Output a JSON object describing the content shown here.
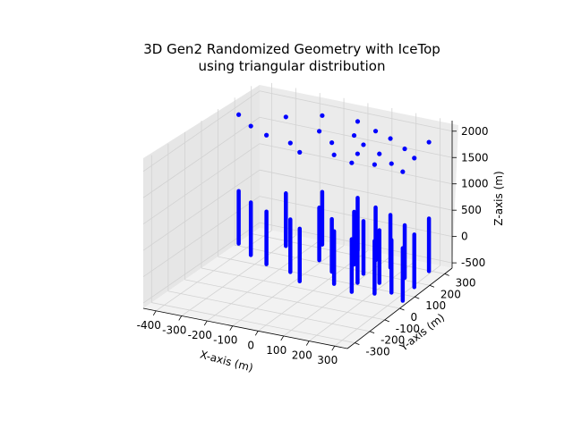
{
  "chart_data": {
    "type": "scatter3d",
    "title_line1": "3D Gen2 Randomized Geometry with IceTop",
    "title_line2": "using triangular distribution",
    "xlabel": "X-axis (m)",
    "ylabel": "Y-axis (m)",
    "zlabel": "Z-axis (m)",
    "xticks": [
      "-400",
      "-300",
      "-200",
      "-100",
      "0",
      "100",
      "200",
      "300"
    ],
    "yticks": [
      "-300",
      "-200",
      "-100",
      "0",
      "100",
      "200",
      "300"
    ],
    "zticks": [
      "-500",
      "0",
      "500",
      "1000",
      "1500",
      "2000"
    ],
    "color": "#0000ff",
    "icetop_z": 1950,
    "string_z_range": [
      -500,
      500
    ],
    "stations": [
      [
        -420,
        180
      ],
      [
        -330,
        120
      ],
      [
        -260,
        230
      ],
      [
        -240,
        80
      ],
      [
        -150,
        290
      ],
      [
        -130,
        60
      ],
      [
        -90,
        180
      ],
      [
        -60,
        10
      ],
      [
        -10,
        300
      ],
      [
        0,
        120
      ],
      [
        40,
        200
      ],
      [
        60,
        40
      ],
      [
        90,
        260
      ],
      [
        110,
        150
      ],
      [
        130,
        80
      ],
      [
        150,
        10
      ],
      [
        170,
        230
      ],
      [
        200,
        110
      ],
      [
        230,
        30
      ],
      [
        260,
        180
      ],
      [
        280,
        60
      ],
      [
        310,
        260
      ],
      [
        330,
        130
      ],
      [
        350,
        20
      ]
    ]
  }
}
